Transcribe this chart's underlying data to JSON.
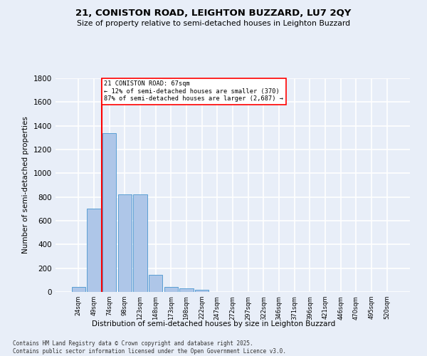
{
  "title": "21, CONISTON ROAD, LEIGHTON BUZZARD, LU7 2QY",
  "subtitle": "Size of property relative to semi-detached houses in Leighton Buzzard",
  "xlabel": "Distribution of semi-detached houses by size in Leighton Buzzard",
  "ylabel": "Number of semi-detached properties",
  "categories": [
    "24sqm",
    "49sqm",
    "74sqm",
    "98sqm",
    "123sqm",
    "148sqm",
    "173sqm",
    "198sqm",
    "222sqm",
    "247sqm",
    "272sqm",
    "297sqm",
    "322sqm",
    "346sqm",
    "371sqm",
    "396sqm",
    "421sqm",
    "446sqm",
    "470sqm",
    "495sqm",
    "520sqm"
  ],
  "values": [
    40,
    700,
    1340,
    820,
    820,
    145,
    40,
    30,
    20,
    0,
    0,
    0,
    0,
    0,
    0,
    0,
    0,
    0,
    0,
    0,
    0
  ],
  "bar_color": "#aec6e8",
  "bar_edge_color": "#5a9fd4",
  "vline_x": 1.5,
  "vline_color": "red",
  "annotation_text": "21 CONISTON ROAD: 67sqm\n← 12% of semi-detached houses are smaller (370)\n87% of semi-detached houses are larger (2,687) →",
  "annotation_box_color": "white",
  "annotation_box_edge": "red",
  "ylim": [
    0,
    1800
  ],
  "yticks": [
    0,
    200,
    400,
    600,
    800,
    1000,
    1200,
    1400,
    1600,
    1800
  ],
  "background_color": "#e8eef8",
  "grid_color": "white",
  "footer": "Contains HM Land Registry data © Crown copyright and database right 2025.\nContains public sector information licensed under the Open Government Licence v3.0."
}
